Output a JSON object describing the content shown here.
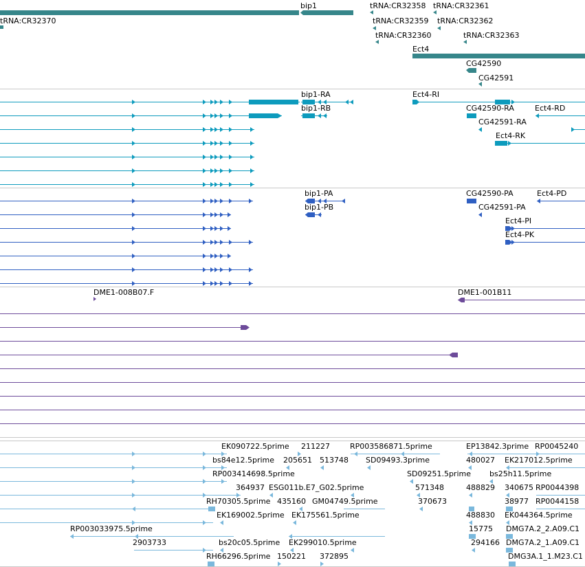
{
  "colors": {
    "background": "#ffffff",
    "separator": "#c8c8c8",
    "gene": "#36868a",
    "mrna": "#0d9bbd",
    "protein": "#2f5fc2",
    "clone": "#6d4b9a",
    "est": "#7ab8dc",
    "label": "#000000"
  },
  "tracks": {
    "genes": {
      "features": [
        {
          "label": "bip1"
        },
        {
          "label": "tRNA:CR32370"
        },
        {
          "label": "tRNA:CR32358"
        },
        {
          "label": "tRNA:CR32361"
        },
        {
          "label": "tRNA:CR32359"
        },
        {
          "label": "tRNA:CR32362"
        },
        {
          "label": "tRNA:CR32360"
        },
        {
          "label": "tRNA:CR32363"
        },
        {
          "label": "Ect4"
        },
        {
          "label": "CG42590"
        },
        {
          "label": "CG42591"
        }
      ]
    },
    "transcripts": {
      "labels": [
        "bip1-RA",
        "bip1-RB",
        "Ect4-RI",
        "CG42590-RA",
        "Ect4-RD",
        "CG42591-RA",
        "Ect4-RK"
      ]
    },
    "proteins": {
      "labels": [
        "bip1-PA",
        "bip1-PB",
        "CG42590-PA",
        "Ect4-PD",
        "CG42591-PA",
        "Ect4-PI",
        "Ect4-PK"
      ]
    },
    "clones": {
      "labels": [
        "DME1-008B07.F",
        "DME1-001B11"
      ]
    },
    "ests": {
      "labels": [
        "EK090722.5prime",
        "211227",
        "RP003586871.5prime",
        "EP13842.3prime",
        "RP0045240",
        "bs84e12.5prime",
        "205651",
        "513748",
        "SD09493.3prime",
        "480027",
        "EK217012.5prime",
        "RP003414698.5prime",
        "SD09251.5prime",
        "bs25h11.5prime",
        "364937",
        "ESG011b.E7_G02.5prime",
        "571348",
        "488829",
        "340675",
        "RP0044398",
        "RH70305.5prime",
        "435160",
        "GM04749.5prime",
        "370673",
        "38977",
        "RP0044158",
        "EK169002.5prime",
        "EK175561.5prime",
        "488830",
        "EK044364.5prime",
        "RP003033975.5prime",
        "15775",
        "DMG7A.2_2.A09.C1",
        "2903733",
        "bs20c05.5prime",
        "EK299010.5prime",
        "294166",
        "DMG7A.2_1.A09.C1",
        "RH66296.5prime",
        "150221",
        "372895",
        "DMG3A.1_1.M23.C1"
      ]
    }
  }
}
